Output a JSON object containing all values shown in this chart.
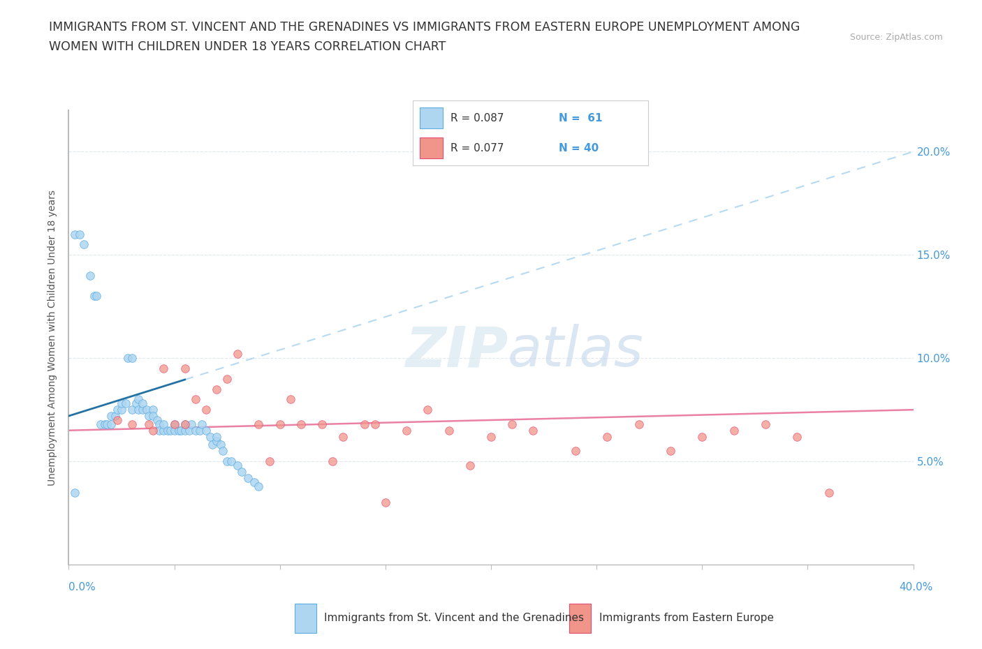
{
  "title_line1": "IMMIGRANTS FROM ST. VINCENT AND THE GRENADINES VS IMMIGRANTS FROM EASTERN EUROPE UNEMPLOYMENT AMONG",
  "title_line2": "WOMEN WITH CHILDREN UNDER 18 YEARS CORRELATION CHART",
  "source": "Source: ZipAtlas.com",
  "ylabel": "Unemployment Among Women with Children Under 18 years",
  "legend_label1": "Immigrants from St. Vincent and the Grenadines",
  "legend_label2": "Immigrants from Eastern Europe",
  "legend_R1": "R = 0.087",
  "legend_N1": "N =  61",
  "legend_R2": "R = 0.077",
  "legend_N2": "N = 40",
  "color_blue_fill": "#aed6f1",
  "color_blue_edge": "#5dade2",
  "color_pink_fill": "#f1948a",
  "color_pink_edge": "#e74c6f",
  "trendline_blue_dashed": "#aed6f1",
  "trendline_blue_solid": "#2471a3",
  "trendline_pink_solid": "#e8729a",
  "ytick_labels": [
    "5.0%",
    "10.0%",
    "15.0%",
    "20.0%"
  ],
  "ytick_values": [
    0.05,
    0.1,
    0.15,
    0.2
  ],
  "xlim": [
    0.0,
    0.4
  ],
  "ylim": [
    0.0,
    0.22
  ],
  "blue_x": [
    0.003,
    0.005,
    0.007,
    0.01,
    0.012,
    0.013,
    0.015,
    0.017,
    0.018,
    0.02,
    0.02,
    0.022,
    0.023,
    0.025,
    0.025,
    0.027,
    0.028,
    0.03,
    0.03,
    0.032,
    0.033,
    0.033,
    0.035,
    0.035,
    0.037,
    0.038,
    0.04,
    0.04,
    0.042,
    0.043,
    0.043,
    0.045,
    0.045,
    0.047,
    0.048,
    0.05,
    0.05,
    0.052,
    0.053,
    0.055,
    0.055,
    0.057,
    0.058,
    0.06,
    0.062,
    0.063,
    0.065,
    0.067,
    0.068,
    0.07,
    0.07,
    0.072,
    0.073,
    0.075,
    0.077,
    0.08,
    0.082,
    0.085,
    0.088,
    0.09,
    0.003
  ],
  "blue_y": [
    0.16,
    0.16,
    0.155,
    0.14,
    0.13,
    0.13,
    0.068,
    0.068,
    0.068,
    0.068,
    0.072,
    0.072,
    0.075,
    0.075,
    0.078,
    0.078,
    0.1,
    0.1,
    0.075,
    0.078,
    0.08,
    0.075,
    0.075,
    0.078,
    0.075,
    0.072,
    0.075,
    0.072,
    0.07,
    0.068,
    0.065,
    0.065,
    0.068,
    0.065,
    0.065,
    0.068,
    0.065,
    0.065,
    0.065,
    0.065,
    0.068,
    0.065,
    0.068,
    0.065,
    0.065,
    0.068,
    0.065,
    0.062,
    0.058,
    0.06,
    0.062,
    0.058,
    0.055,
    0.05,
    0.05,
    0.048,
    0.045,
    0.042,
    0.04,
    0.038,
    0.035
  ],
  "pink_x": [
    0.023,
    0.03,
    0.038,
    0.04,
    0.045,
    0.05,
    0.055,
    0.055,
    0.06,
    0.065,
    0.07,
    0.075,
    0.08,
    0.09,
    0.095,
    0.1,
    0.105,
    0.11,
    0.12,
    0.125,
    0.13,
    0.14,
    0.145,
    0.15,
    0.16,
    0.17,
    0.18,
    0.19,
    0.2,
    0.21,
    0.22,
    0.24,
    0.255,
    0.27,
    0.285,
    0.3,
    0.315,
    0.33,
    0.345,
    0.36
  ],
  "pink_y": [
    0.07,
    0.068,
    0.068,
    0.065,
    0.095,
    0.068,
    0.095,
    0.068,
    0.08,
    0.075,
    0.085,
    0.09,
    0.102,
    0.068,
    0.05,
    0.068,
    0.08,
    0.068,
    0.068,
    0.05,
    0.062,
    0.068,
    0.068,
    0.03,
    0.065,
    0.075,
    0.065,
    0.048,
    0.062,
    0.068,
    0.065,
    0.055,
    0.062,
    0.068,
    0.055,
    0.062,
    0.065,
    0.068,
    0.062,
    0.035
  ],
  "background_color": "#ffffff",
  "grid_color": "#e0e8f0",
  "watermark_color": "#dde8f0"
}
